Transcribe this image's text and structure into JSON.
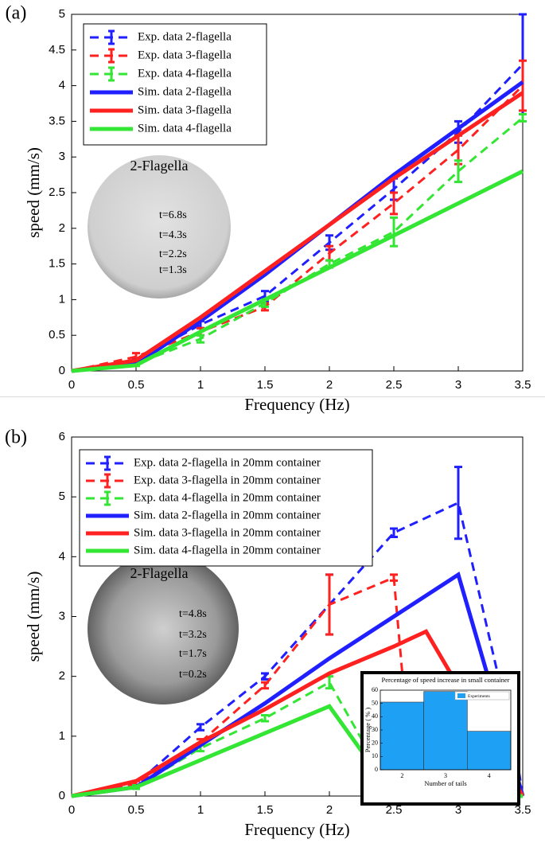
{
  "chart_data": [
    {
      "type": "line",
      "panel_label": "(a)",
      "xlabel": "Frequency (Hz)",
      "ylabel": "speed (mm/s)",
      "xlim": [
        0,
        3.5
      ],
      "xticks": [
        0,
        0.5,
        1,
        1.5,
        2,
        2.5,
        3,
        3.5
      ],
      "ylim": [
        0,
        5
      ],
      "yticks": [
        0,
        0.5,
        1,
        1.5,
        2,
        2.5,
        3,
        3.5,
        4,
        4.5,
        5
      ],
      "legend": "upper left",
      "inset": {
        "title": "2-Flagella",
        "labels": [
          "t=6.8s",
          "t=4.3s",
          "t=2.2s",
          "t=1.3s"
        ]
      },
      "series": [
        {
          "name": "Exp. data 2-flagella",
          "color": "#1f1fff",
          "dashed": true,
          "x": [
            0,
            0.5,
            1,
            1.5,
            2,
            2.5,
            3,
            3.5
          ],
          "values": [
            0,
            0.15,
            0.65,
            1.05,
            1.8,
            2.55,
            3.35,
            4.3
          ],
          "errors": [
            null,
            0.03,
            0.05,
            0.07,
            0.1,
            0.15,
            0.15,
            0.7
          ]
        },
        {
          "name": "Exp. data 3-flagella",
          "color": "#ff2020",
          "dashed": true,
          "x": [
            0,
            0.5,
            1,
            1.5,
            2,
            2.5,
            3,
            3.5
          ],
          "values": [
            0,
            0.2,
            0.55,
            0.9,
            1.65,
            2.35,
            3.1,
            4.0
          ],
          "errors": [
            null,
            0.05,
            0.05,
            0.05,
            0.1,
            0.15,
            0.2,
            0.35
          ]
        },
        {
          "name": "Exp. data 4-flagella",
          "color": "#33e633",
          "dashed": true,
          "x": [
            0,
            0.5,
            1,
            1.5,
            2,
            2.5,
            3,
            3.5
          ],
          "values": [
            0,
            0.1,
            0.45,
            0.95,
            1.5,
            1.95,
            2.8,
            3.55
          ],
          "errors": [
            null,
            0.03,
            0.05,
            0.05,
            0.05,
            0.2,
            0.15,
            0.05
          ]
        },
        {
          "name": "Sim. data 2-flagella",
          "color": "#1f1fff",
          "dashed": false,
          "x": [
            0,
            0.5,
            1,
            1.5,
            2,
            2.5,
            3,
            3.5
          ],
          "values": [
            0,
            0.1,
            0.7,
            1.35,
            2.05,
            2.75,
            3.4,
            4.05
          ]
        },
        {
          "name": "Sim. data 3-flagella",
          "color": "#ff2020",
          "dashed": false,
          "x": [
            0,
            0.5,
            1,
            1.5,
            2,
            2.5,
            3,
            3.5
          ],
          "values": [
            0,
            0.15,
            0.75,
            1.4,
            2.05,
            2.7,
            3.3,
            3.9
          ]
        },
        {
          "name": "Sim. data 4-flagella",
          "color": "#33e633",
          "dashed": false,
          "x": [
            0,
            0.5,
            1,
            1.5,
            2,
            2.5,
            3,
            3.5
          ],
          "values": [
            0,
            0.08,
            0.55,
            1.0,
            1.45,
            1.9,
            2.35,
            2.8
          ]
        }
      ]
    },
    {
      "type": "line",
      "panel_label": "(b)",
      "xlabel": "Frequency (Hz)",
      "ylabel": "speed (mm/s)",
      "xlim": [
        0,
        3.5
      ],
      "xticks": [
        0,
        0.5,
        1,
        1.5,
        2,
        2.5,
        3,
        3.5
      ],
      "ylim": [
        0,
        6
      ],
      "yticks": [
        0,
        1,
        2,
        3,
        4,
        5,
        6
      ],
      "legend": "upper left",
      "inset": {
        "title": "2-Flagella",
        "labels": [
          "t=4.8s",
          "t=3.2s",
          "t=1.7s",
          "t=0.2s"
        ]
      },
      "series": [
        {
          "name": "Exp. data 2-flagella in 20mm container",
          "color": "#1f1fff",
          "dashed": true,
          "x": [
            0,
            0.5,
            1,
            1.5,
            2,
            2.5,
            3,
            3.45,
            3.5
          ],
          "values": [
            0,
            0.2,
            1.15,
            2.0,
            3.2,
            4.4,
            4.9,
            0.7,
            0
          ],
          "errors": [
            null,
            0.05,
            0.05,
            0.05,
            0.5,
            0.07,
            0.6,
            0.1,
            null
          ]
        },
        {
          "name": "Exp. data 3-flagella in 20mm container",
          "color": "#ff2020",
          "dashed": true,
          "x": [
            0,
            0.5,
            1,
            1.5,
            2,
            2.5,
            2.65
          ],
          "values": [
            0,
            0.2,
            0.9,
            1.85,
            3.2,
            3.65,
            0
          ],
          "errors": [
            null,
            0.05,
            0.05,
            0.05,
            0.5,
            0.05,
            null
          ]
        },
        {
          "name": "Exp. data 4-flagella in 20mm container",
          "color": "#33e633",
          "dashed": true,
          "x": [
            0,
            0.5,
            1,
            1.5,
            2,
            2.5
          ],
          "values": [
            0,
            0.15,
            0.8,
            1.3,
            1.9,
            0
          ],
          "errors": [
            null,
            0.03,
            0.05,
            0.05,
            0.1,
            null
          ]
        },
        {
          "name": "Sim. data 2-flagella in 20mm container",
          "color": "#1f1fff",
          "dashed": false,
          "x": [
            0,
            0.5,
            1,
            1.5,
            2,
            2.5,
            3,
            3.5
          ],
          "values": [
            0,
            0.15,
            0.85,
            1.55,
            2.3,
            3.0,
            3.7,
            0
          ]
        },
        {
          "name": "Sim. data 3-flagella in 20mm container",
          "color": "#ff2020",
          "dashed": false,
          "x": [
            0,
            0.5,
            1,
            1.5,
            2,
            2.5,
            2.75,
            3.5
          ],
          "values": [
            0,
            0.25,
            0.9,
            1.45,
            2.05,
            2.5,
            2.75,
            0
          ]
        },
        {
          "name": "Sim. data 4-flagella in 20mm container",
          "color": "#33e633",
          "dashed": false,
          "x": [
            0,
            0.5,
            1,
            1.5,
            2,
            2.5,
            3.5
          ],
          "values": [
            0,
            0.15,
            0.6,
            1.05,
            1.5,
            0,
            0
          ]
        }
      ]
    },
    {
      "type": "bar",
      "title": "Percentage of speed increase in small container",
      "xlabel": "Number of tails",
      "ylabel": "Percentage ( % )",
      "categories": [
        "2",
        "3",
        "4"
      ],
      "ylim": [
        0,
        60
      ],
      "yticks": [
        0,
        10,
        20,
        30,
        40,
        50,
        60
      ],
      "series": [
        {
          "name": "Experiments",
          "color": "#1ea0f5",
          "values": [
            51,
            59,
            29
          ]
        }
      ],
      "legend": "upper right"
    }
  ]
}
